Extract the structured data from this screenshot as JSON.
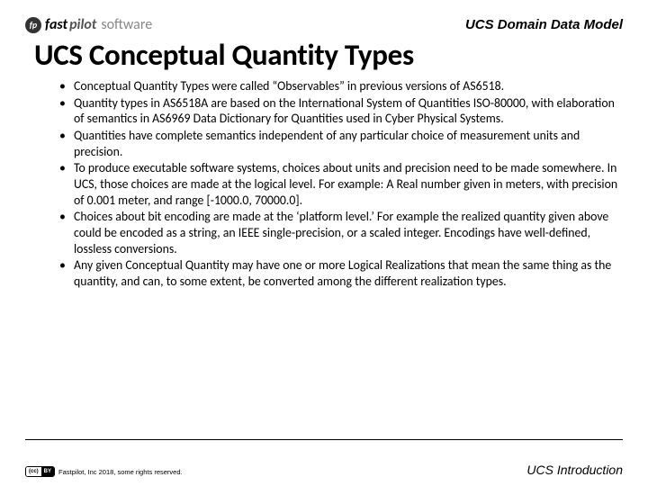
{
  "header": {
    "logo_prefix": "fp",
    "logo_fast": "fast",
    "logo_pilot": "pilot",
    "logo_software": "software",
    "right": "UCS Domain Data Model"
  },
  "title": "UCS Conceptual Quantity Types",
  "bullets": [
    "Conceptual Quantity Types were called “Observables” in previous versions of AS6518.",
    "Quantity types in AS6518A are based on the International System of Quantities ISO-80000, with elaboration of semantics in AS6969 Data Dictionary for Quantities used in Cyber Physical Systems.",
    "Quantities have complete semantics independent of any particular choice of measurement units and precision.",
    "To produce executable software systems, choices about units and precision need to be made somewhere.  In UCS, those choices are made at the logical level.  For example:  A Real number given in meters, with precision of 0.001 meter, and range [-1000.0, 70000.0].",
    "Choices about bit encoding are made at the ‘platform level.’   For example the realized quantity given above could be encoded as a string, an IEEE single-precision, or a scaled integer.   Encodings have well-defined, lossless conversions.",
    "Any given Conceptual Quantity may have one or more Logical Realizations that mean the same thing as the quantity, and can, to some extent, be converted among the different realization types."
  ],
  "footer": {
    "cc": "(cc)",
    "by": "BY",
    "copyright": "Fastpilot, Inc 2018, some rights reserved.",
    "right": "UCS Introduction"
  }
}
